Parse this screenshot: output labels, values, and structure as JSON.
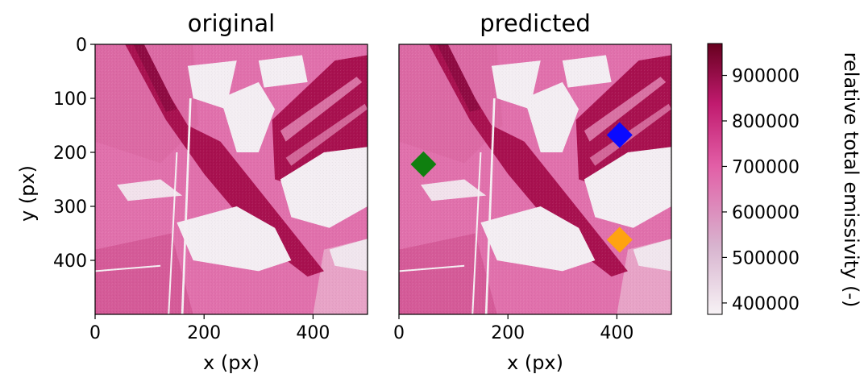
{
  "chart_data": [
    {
      "type": "heatmap",
      "title": "original",
      "xlabel": "x (px)",
      "ylabel": "y (px)",
      "xlim": [
        0,
        500
      ],
      "ylim": [
        500,
        0
      ],
      "xticks": [
        0,
        200,
        400
      ],
      "yticks": [
        0,
        100,
        200,
        300,
        400
      ]
    },
    {
      "type": "heatmap",
      "title": "predicted",
      "xlabel": "x (px)",
      "xlim": [
        0,
        500
      ],
      "ylim": [
        500,
        0
      ],
      "xticks": [
        0,
        200,
        400
      ],
      "markers": [
        {
          "x": 405,
          "y": 168,
          "color": "#0a0aff",
          "shape": "diamond"
        },
        {
          "x": 45,
          "y": 222,
          "color": "#0f7f0f",
          "shape": "diamond"
        },
        {
          "x": 405,
          "y": 362,
          "color": "#ffa310",
          "shape": "diamond"
        }
      ]
    }
  ],
  "colorbar": {
    "label": "relative total emissivity (-)",
    "range": [
      375000,
      970000
    ],
    "ticks": [
      400000,
      500000,
      600000,
      700000,
      800000,
      900000
    ],
    "colors": [
      "#f7f2f5",
      "#d8b4cf",
      "#e25ea6",
      "#c01a6e",
      "#67001f"
    ]
  }
}
